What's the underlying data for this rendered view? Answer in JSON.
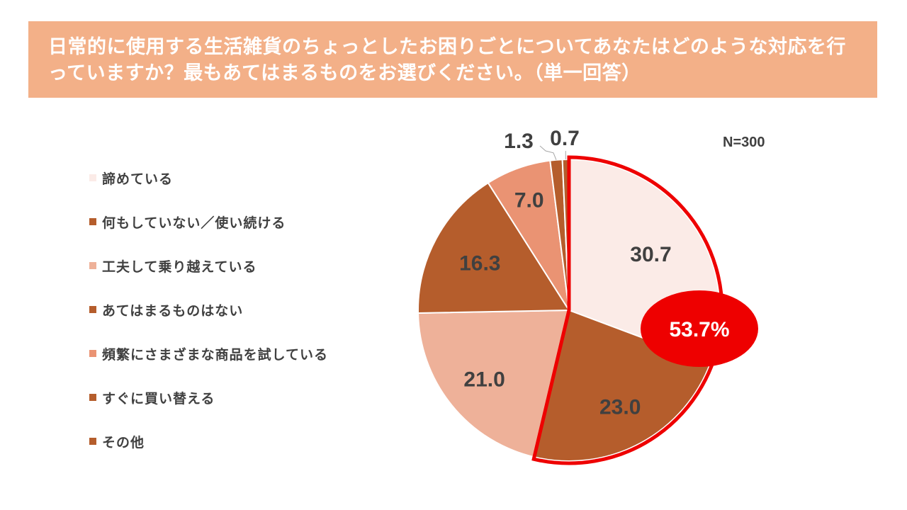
{
  "title": "日常的に使用する生活雑貨のちょっとしたお困りごとについてあなたはどのような対応を行っていますか？最もあてはまるものをお選びください。（単一回答）",
  "sample_size": "N=300",
  "colors": {
    "title_bg": "#f3b088",
    "highlight": "#ee0000"
  },
  "chart_data": {
    "type": "pie",
    "title": "日常的に使用する生活雑貨のちょっとしたお困りごとについてあなたはどのような対応を行っていますか？最もあてはまるものをお選びください。（単一回答）",
    "legend_position": "left",
    "slices": [
      {
        "label": "諦めている",
        "value": 30.7,
        "value_label": "30.7",
        "color": "#fbebe7"
      },
      {
        "label": "何もしていない／使い続ける",
        "value": 23.0,
        "value_label": "23.0",
        "color": "#b55d2c"
      },
      {
        "label": "工夫して乗り越えている",
        "value": 21.0,
        "value_label": "21.0",
        "color": "#eeb199"
      },
      {
        "label": "あてはまるものはない",
        "value": 16.3,
        "value_label": "16.3",
        "color": "#b55d2c"
      },
      {
        "label": "頻繁にさまざまな商品を試している",
        "value": 7.0,
        "value_label": "7.0",
        "color": "#ea9373"
      },
      {
        "label": "すぐに買い替える",
        "value": 1.3,
        "value_label": "1.3",
        "color": "#b55d2c"
      },
      {
        "label": "その他",
        "value": 0.7,
        "value_label": "0.7",
        "color": "#b55d2c"
      }
    ],
    "highlight": {
      "slices": [
        "諦めている",
        "何もしていない／使い続ける"
      ],
      "label": "53.7%"
    }
  }
}
